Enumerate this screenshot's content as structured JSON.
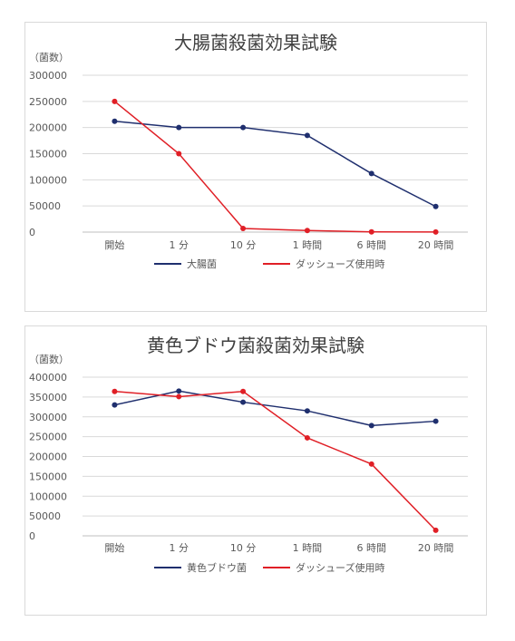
{
  "chart_data": [
    {
      "type": "line",
      "title": "大腸菌殺菌効果試験",
      "unit_label": "（菌数）",
      "categories": [
        "開始",
        "1 分",
        "10 分",
        "1 時間",
        "6 時間",
        "20 時間"
      ],
      "ylim": [
        0,
        300000
      ],
      "y_ticks": [
        "300000",
        "250000",
        "200000",
        "150000",
        "100000",
        "50000",
        "0"
      ],
      "grid": true,
      "legend_position": "bottom",
      "series": [
        {
          "name": "大腸菌",
          "color": "#1f2f6e",
          "values": [
            212000,
            200000,
            200000,
            185000,
            112000,
            49000
          ]
        },
        {
          "name": "ダッシューズ使用時",
          "color": "#e01f26",
          "values": [
            250000,
            150000,
            7000,
            3000,
            500,
            200
          ]
        }
      ]
    },
    {
      "type": "line",
      "title": "黄色ブドウ菌殺菌効果試験",
      "unit_label": "（菌数）",
      "categories": [
        "開始",
        "1 分",
        "10 分",
        "1 時間",
        "6 時間",
        "20 時間"
      ],
      "ylim": [
        0,
        400000
      ],
      "y_ticks": [
        "400000",
        "350000",
        "300000",
        "250000",
        "200000",
        "150000",
        "100000",
        "50000",
        "0"
      ],
      "grid": true,
      "legend_position": "bottom",
      "series": [
        {
          "name": "黄色ブドウ菌",
          "color": "#1f2f6e",
          "values": [
            330000,
            365000,
            337000,
            315000,
            278000,
            289000
          ]
        },
        {
          "name": "ダッシューズ使用時",
          "color": "#e01f26",
          "values": [
            364000,
            351000,
            364000,
            247000,
            181000,
            14000
          ]
        }
      ]
    }
  ]
}
